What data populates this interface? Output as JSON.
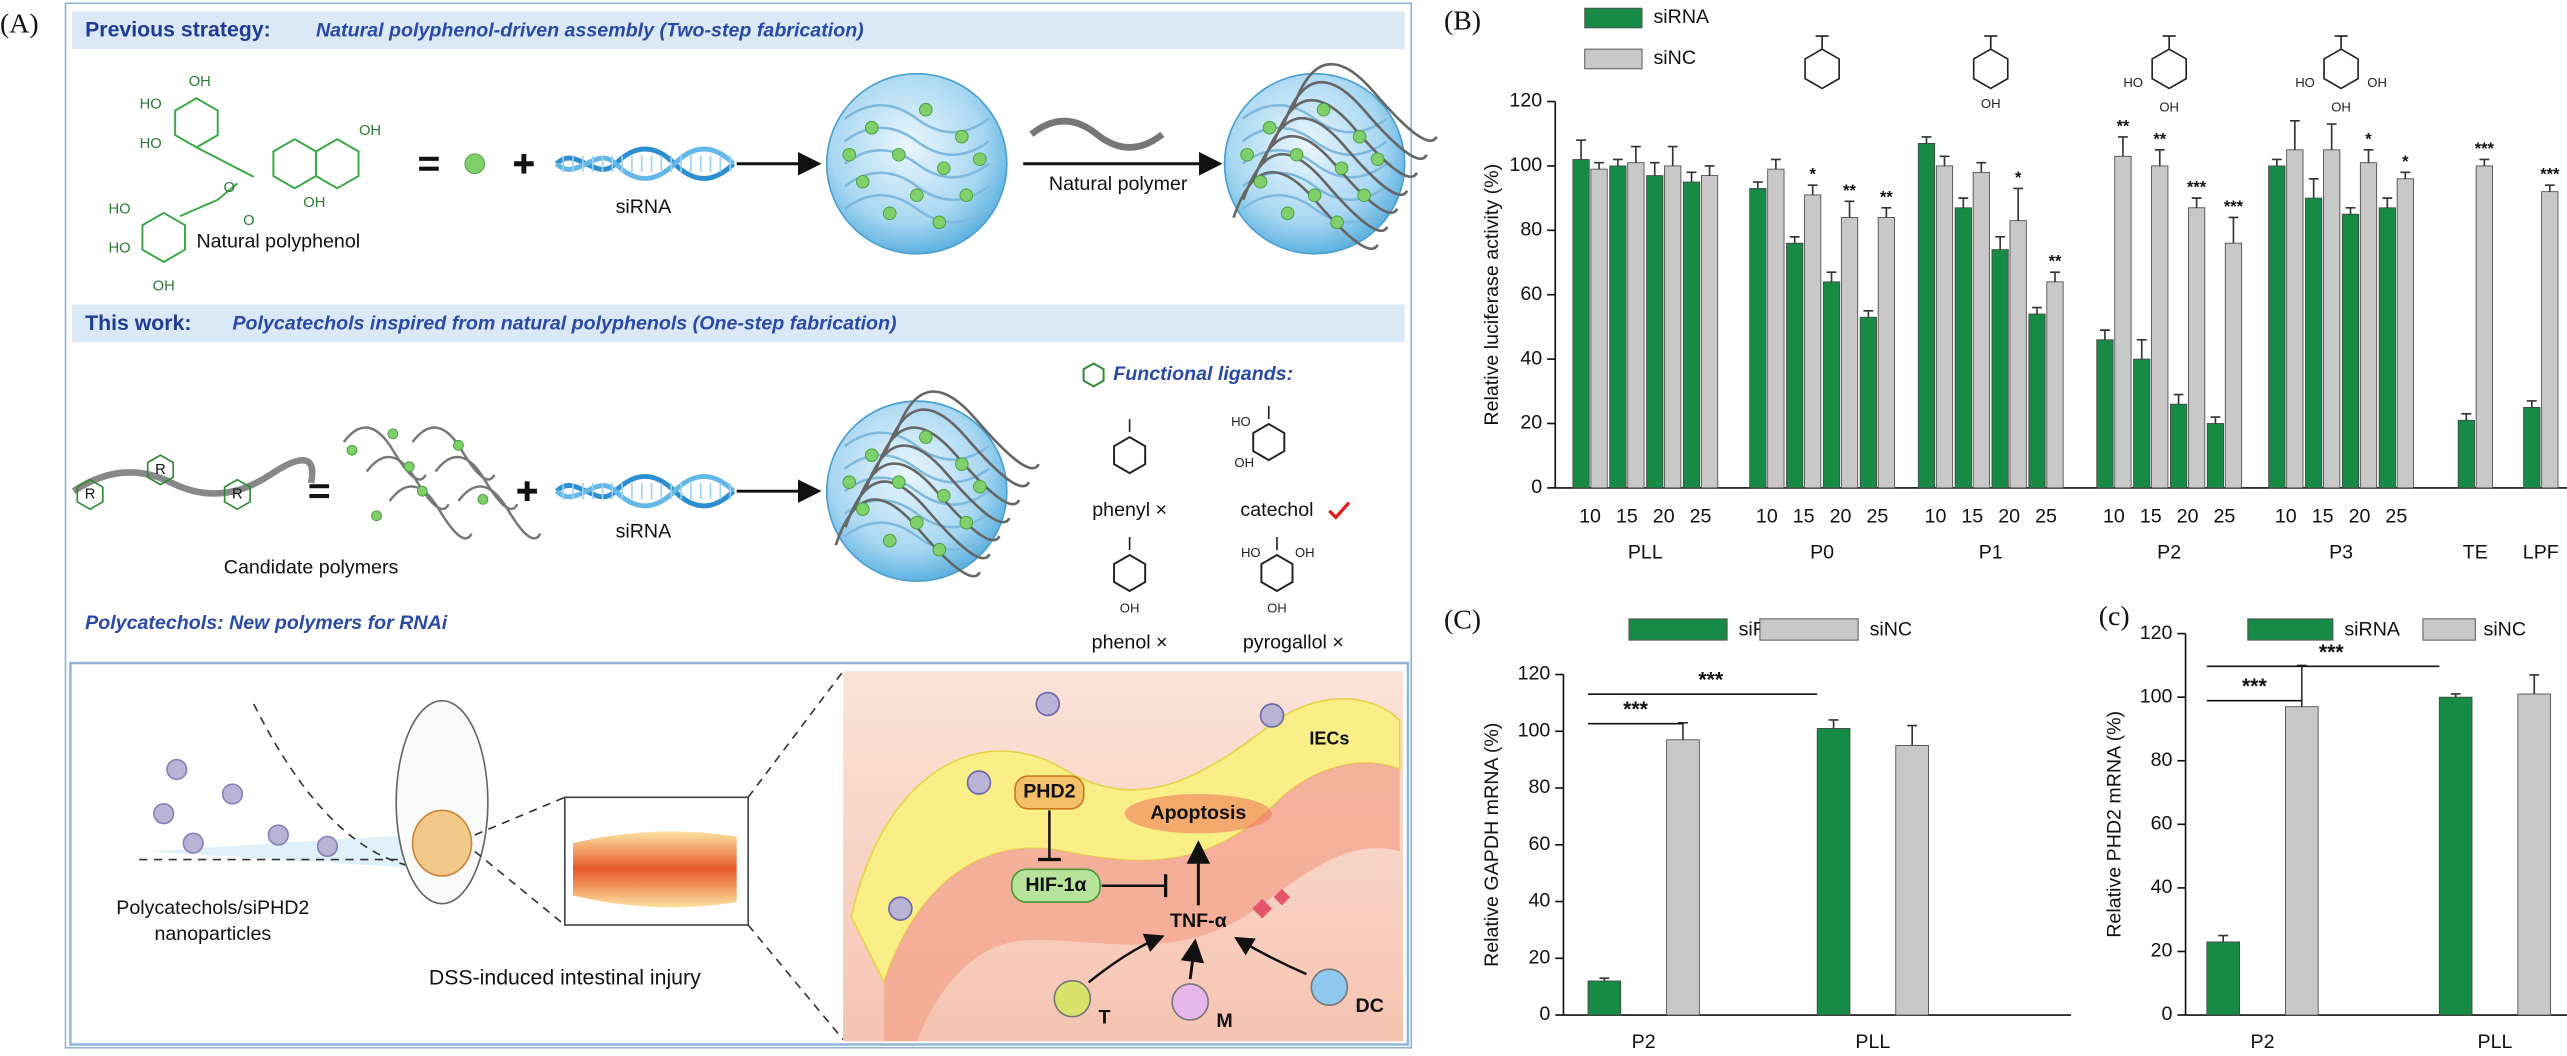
{
  "panel_a": {
    "label": "(A)",
    "previous": {
      "heading": "Previous strategy:",
      "subtitle": "Natural polyphenol-driven assembly (Two-step fabrication)",
      "polyphenol": "Natural polyphenol",
      "sirna": "siRNA",
      "polymer": "Natural polymer",
      "polyphenol_labels": [
        "OH",
        "HO",
        "HO",
        "OH",
        "O",
        "O",
        "OH",
        "HO",
        "HO",
        "OH"
      ]
    },
    "this_work": {
      "heading": "This work:",
      "subtitle": "Polycatechols inspired from natural polyphenols (One-step fabrication)",
      "r": "R",
      "candidates": "Candidate polymers",
      "sirna": "siRNA",
      "ligands_title": "Functional ligands:",
      "ligands": [
        {
          "name": "phenyl ×",
          "labels": []
        },
        {
          "name": "catechol",
          "labels": [
            "HO",
            "OH"
          ]
        },
        {
          "name": "phenol ×",
          "labels": [
            "OH"
          ]
        },
        {
          "name": "pyrogallol ×",
          "labels": [
            "HO",
            "OH",
            "OH"
          ]
        }
      ]
    },
    "rnai": {
      "heading": "Polycatechols: New polymers for RNAi",
      "nanoparticles": [
        "Polycatechols/siPHD2",
        "nanoparticles"
      ],
      "injury": "DSS-induced intestinal injury",
      "pathway": {
        "phd2": "PHD2",
        "hif": "HIF-1α",
        "apoptosis": "Apoptosis",
        "tnf": "TNF-α",
        "iecs": "IECs",
        "cells": [
          "T",
          "M",
          "DC"
        ]
      }
    }
  },
  "chart_data": [
    {
      "type": "bar",
      "label": "(B)",
      "ylabel": "Relative luciferase activity (%)",
      "ylim": [
        0,
        120
      ],
      "yticks": [
        0,
        20,
        40,
        60,
        80,
        100,
        120
      ],
      "groups": [
        {
          "name": "PLL",
          "categories": [
            "10",
            "15",
            "20",
            "25"
          ]
        },
        {
          "name": "P0",
          "categories": [
            "10",
            "15",
            "20",
            "25"
          ]
        },
        {
          "name": "P1",
          "categories": [
            "10",
            "15",
            "20",
            "25"
          ]
        },
        {
          "name": "P2",
          "categories": [
            "10",
            "15",
            "20",
            "25"
          ]
        },
        {
          "name": "P3",
          "categories": [
            "10",
            "15",
            "20",
            "25"
          ]
        },
        {
          "name": "TE",
          "categories": [
            null
          ]
        },
        {
          "name": "LPF",
          "categories": [
            null
          ]
        }
      ],
      "series": [
        {
          "name": "siRNA",
          "color": "#178a45",
          "values": [
            102,
            100,
            97,
            95,
            93,
            76,
            64,
            53,
            107,
            87,
            74,
            54,
            46,
            40,
            26,
            20,
            100,
            90,
            85,
            87,
            21,
            25
          ],
          "errors": [
            6,
            2,
            4,
            3,
            2,
            2,
            3,
            2,
            2,
            3,
            4,
            2,
            3,
            6,
            3,
            2,
            2,
            6,
            2,
            3,
            2,
            2
          ]
        },
        {
          "name": "siNC",
          "color": "#c8c8c8",
          "values": [
            99,
            101,
            100,
            97,
            99,
            91,
            84,
            84,
            100,
            98,
            83,
            64,
            103,
            100,
            87,
            76,
            105,
            105,
            101,
            96,
            100,
            92
          ],
          "errors": [
            2,
            5,
            6,
            3,
            3,
            3,
            5,
            3,
            3,
            3,
            10,
            3,
            6,
            5,
            3,
            8,
            9,
            8,
            4,
            2,
            2,
            2
          ]
        }
      ],
      "significance": [
        null,
        null,
        null,
        null,
        null,
        "*",
        "**",
        "**",
        null,
        null,
        "*",
        "**",
        "**",
        "**",
        "***",
        "***",
        null,
        null,
        "*",
        "*",
        "***",
        "***"
      ],
      "structure_labels": [
        [],
        [
          "OH"
        ],
        [
          "HO",
          "OH"
        ],
        [
          "HO",
          "OH",
          "OH"
        ]
      ]
    },
    {
      "type": "bar",
      "label": "(C)",
      "ylabel": "Relative GAPDH mRNA (%)",
      "ylim": [
        0,
        120
      ],
      "yticks": [
        0,
        20,
        40,
        60,
        80,
        100,
        120
      ],
      "categories": [
        "P2",
        "PLL"
      ],
      "series": [
        {
          "name": "siRNA",
          "color": "#178a45",
          "values": [
            12,
            101
          ],
          "errors": [
            1,
            3
          ]
        },
        {
          "name": "siNC",
          "color": "#c8c8c8",
          "values": [
            97,
            95
          ],
          "errors": [
            6,
            7
          ]
        }
      ],
      "significance": [
        "***",
        "***"
      ]
    },
    {
      "type": "bar",
      "label": "(c)",
      "ylabel": "Relative PHD2 mRNA (%)",
      "ylim": [
        0,
        120
      ],
      "yticks": [
        0,
        20,
        40,
        60,
        80,
        100,
        120
      ],
      "categories": [
        "P2",
        "PLL"
      ],
      "series": [
        {
          "name": "siRNA",
          "color": "#178a45",
          "values": [
            23,
            100
          ],
          "errors": [
            2,
            1
          ]
        },
        {
          "name": "siNC",
          "color": "#c8c8c8",
          "values": [
            97,
            101
          ],
          "errors": [
            13,
            6
          ]
        }
      ],
      "significance": [
        "***",
        "***"
      ]
    }
  ]
}
